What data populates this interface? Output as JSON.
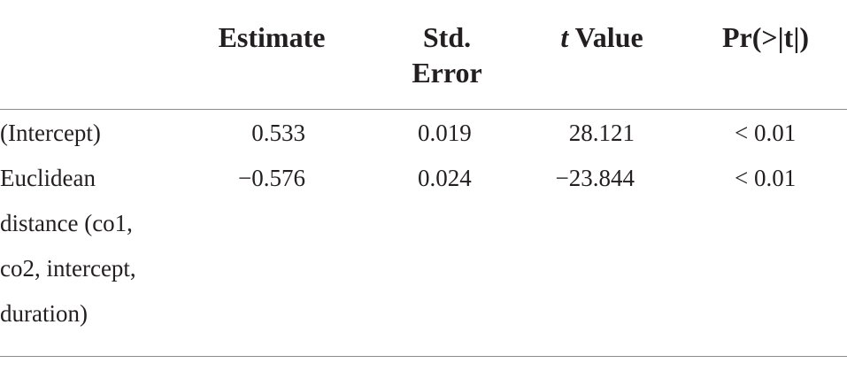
{
  "table": {
    "columns": {
      "estimate": "Estimate",
      "std_error": "Std. Error",
      "t_value_italic": "t",
      "t_value_rest": " Value",
      "p_value": "Pr(>|t|)"
    },
    "rows": [
      {
        "label": "(Intercept)",
        "estimate": "0.533",
        "std_error": "0.019",
        "t_value": "28.121",
        "p_value": "< 0.01"
      },
      {
        "label": "Euclidean distance (co1, co2, intercept, duration)",
        "estimate": "−0.576",
        "std_error": "0.024",
        "t_value": "−23.844",
        "p_value": "< 0.01"
      }
    ]
  }
}
